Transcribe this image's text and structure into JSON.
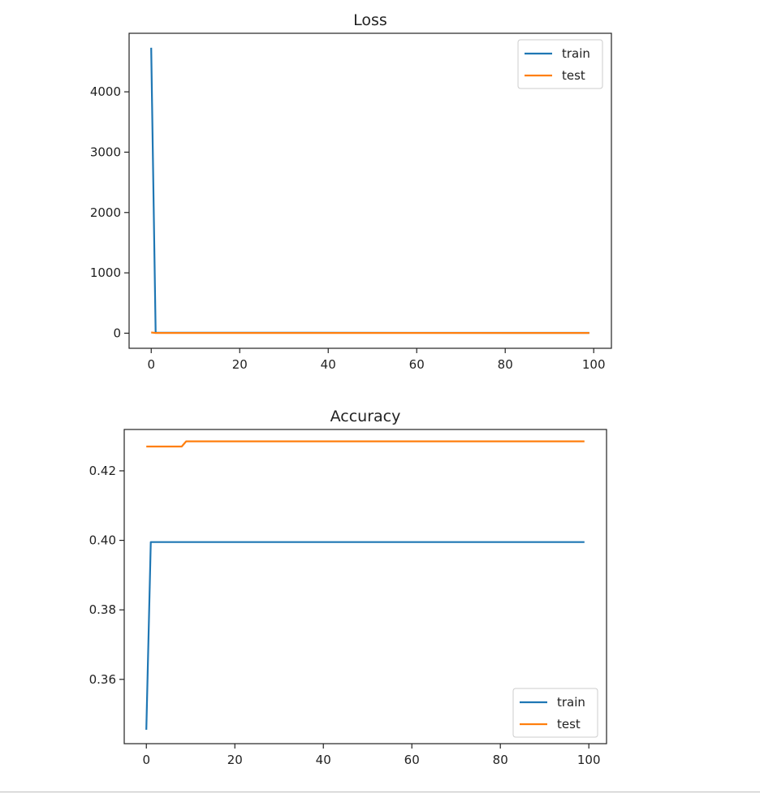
{
  "chart_data": [
    {
      "type": "line",
      "title": "Loss",
      "xlabel": "",
      "ylabel": "",
      "xlim": [
        -5,
        104
      ],
      "ylim": [
        -250,
        4970
      ],
      "xticks": [
        0,
        20,
        40,
        60,
        80,
        100
      ],
      "yticks": [
        0,
        1000,
        2000,
        3000,
        4000
      ],
      "grid": false,
      "legend_position": "top-right",
      "series": [
        {
          "name": "train",
          "color": "#1f77b4",
          "points": [
            [
              0,
              4730
            ],
            [
              1,
              8
            ],
            [
              99,
              6
            ]
          ]
        },
        {
          "name": "test",
          "color": "#ff7f0e",
          "points": [
            [
              0,
              12
            ],
            [
              1,
              4
            ],
            [
              99,
              4
            ]
          ]
        }
      ]
    },
    {
      "type": "line",
      "title": "Accuracy",
      "xlabel": "",
      "ylabel": "",
      "xlim": [
        -5,
        104
      ],
      "ylim": [
        0.3415,
        0.4319
      ],
      "xticks": [
        0,
        20,
        40,
        60,
        80,
        100
      ],
      "yticks": [
        0.36,
        0.38,
        0.4,
        0.42
      ],
      "grid": false,
      "legend_position": "bottom-right",
      "series": [
        {
          "name": "train",
          "color": "#1f77b4",
          "points": [
            [
              0,
              0.3455
            ],
            [
              1,
              0.3995
            ],
            [
              99,
              0.3995
            ]
          ]
        },
        {
          "name": "test",
          "color": "#ff7f0e",
          "points": [
            [
              0,
              0.427
            ],
            [
              8,
              0.427
            ],
            [
              9,
              0.4285
            ],
            [
              99,
              0.4285
            ]
          ]
        }
      ]
    }
  ]
}
